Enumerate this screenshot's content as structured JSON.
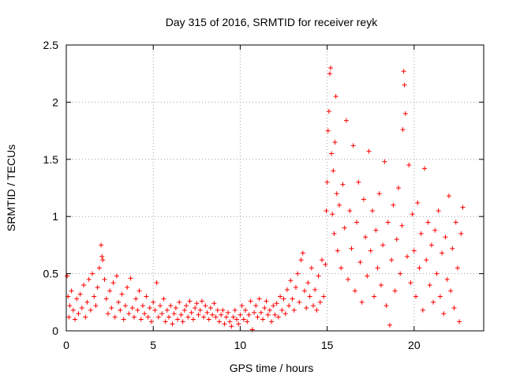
{
  "chart_data": {
    "type": "scatter",
    "title": "Day 315 of 2016, SRMTID for receiver reyk",
    "xlabel": "GPS time / hours",
    "ylabel": "SRMTID / TECUs",
    "xlim": [
      0,
      24
    ],
    "ylim": [
      0,
      2.5
    ],
    "xticks": [
      0,
      5,
      10,
      15,
      20
    ],
    "yticks": [
      0,
      0.5,
      1,
      1.5,
      2,
      2.5
    ],
    "xtick_labels": [
      "0",
      "5",
      "10",
      "15",
      "20"
    ],
    "ytick_labels": [
      "0",
      "0.5",
      "1",
      "1.5",
      "2",
      "2.5"
    ],
    "grid": true,
    "marker": "+",
    "series": [
      {
        "name": "SRMTID",
        "color": "#ff0000",
        "points": [
          [
            0.05,
            0.48
          ],
          [
            0.1,
            0.3
          ],
          [
            0.15,
            0.12
          ],
          [
            0.2,
            0.22
          ],
          [
            0.3,
            0.35
          ],
          [
            0.4,
            0.18
          ],
          [
            0.5,
            0.1
          ],
          [
            0.6,
            0.28
          ],
          [
            0.7,
            0.15
          ],
          [
            0.8,
            0.32
          ],
          [
            0.9,
            0.2
          ],
          [
            1.0,
            0.4
          ],
          [
            1.1,
            0.12
          ],
          [
            1.2,
            0.25
          ],
          [
            1.3,
            0.45
          ],
          [
            1.4,
            0.18
          ],
          [
            1.5,
            0.5
          ],
          [
            1.6,
            0.3
          ],
          [
            1.7,
            0.22
          ],
          [
            1.8,
            0.38
          ],
          [
            1.9,
            0.55
          ],
          [
            2.0,
            0.75
          ],
          [
            2.05,
            0.65
          ],
          [
            2.1,
            0.62
          ],
          [
            2.2,
            0.45
          ],
          [
            2.3,
            0.28
          ],
          [
            2.4,
            0.15
          ],
          [
            2.5,
            0.35
          ],
          [
            2.6,
            0.2
          ],
          [
            2.7,
            0.42
          ],
          [
            2.8,
            0.12
          ],
          [
            2.9,
            0.48
          ],
          [
            3.0,
            0.25
          ],
          [
            3.1,
            0.18
          ],
          [
            3.2,
            0.32
          ],
          [
            3.3,
            0.1
          ],
          [
            3.4,
            0.22
          ],
          [
            3.5,
            0.38
          ],
          [
            3.6,
            0.15
          ],
          [
            3.7,
            0.46
          ],
          [
            3.8,
            0.2
          ],
          [
            3.9,
            0.12
          ],
          [
            4.0,
            0.28
          ],
          [
            4.1,
            0.18
          ],
          [
            4.2,
            0.35
          ],
          [
            4.3,
            0.1
          ],
          [
            4.4,
            0.22
          ],
          [
            4.5,
            0.15
          ],
          [
            4.6,
            0.3
          ],
          [
            4.7,
            0.12
          ],
          [
            4.8,
            0.2
          ],
          [
            4.9,
            0.08
          ],
          [
            5.0,
            0.25
          ],
          [
            5.1,
            0.18
          ],
          [
            5.2,
            0.42
          ],
          [
            5.3,
            0.12
          ],
          [
            5.4,
            0.22
          ],
          [
            5.5,
            0.15
          ],
          [
            5.6,
            0.28
          ],
          [
            5.7,
            0.08
          ],
          [
            5.8,
            0.18
          ],
          [
            5.9,
            0.12
          ],
          [
            6.0,
            0.22
          ],
          [
            6.1,
            0.06
          ],
          [
            6.2,
            0.15
          ],
          [
            6.3,
            0.2
          ],
          [
            6.4,
            0.1
          ],
          [
            6.5,
            0.25
          ],
          [
            6.6,
            0.14
          ],
          [
            6.7,
            0.08
          ],
          [
            6.8,
            0.18
          ],
          [
            6.9,
            0.22
          ],
          [
            7.0,
            0.12
          ],
          [
            7.1,
            0.26
          ],
          [
            7.2,
            0.16
          ],
          [
            7.3,
            0.1
          ],
          [
            7.4,
            0.2
          ],
          [
            7.5,
            0.24
          ],
          [
            7.6,
            0.14
          ],
          [
            7.7,
            0.18
          ],
          [
            7.8,
            0.26
          ],
          [
            7.9,
            0.12
          ],
          [
            8.0,
            0.22
          ],
          [
            8.1,
            0.16
          ],
          [
            8.2,
            0.1
          ],
          [
            8.3,
            0.2
          ],
          [
            8.4,
            0.14
          ],
          [
            8.5,
            0.24
          ],
          [
            8.6,
            0.12
          ],
          [
            8.7,
            0.18
          ],
          [
            8.8,
            0.08
          ],
          [
            8.9,
            0.14
          ],
          [
            9.0,
            0.18
          ],
          [
            9.1,
            0.06
          ],
          [
            9.2,
            0.12
          ],
          [
            9.3,
            0.16
          ],
          [
            9.4,
            0.08
          ],
          [
            9.5,
            0.04
          ],
          [
            9.6,
            0.12
          ],
          [
            9.7,
            0.18
          ],
          [
            9.8,
            0.1
          ],
          [
            9.9,
            0.06
          ],
          [
            10.0,
            0.14
          ],
          [
            10.1,
            0.22
          ],
          [
            10.2,
            0.1
          ],
          [
            10.3,
            0.18
          ],
          [
            10.4,
            0.08
          ],
          [
            10.5,
            0.14
          ],
          [
            10.6,
            0.26
          ],
          [
            10.7,
            0.01
          ],
          [
            10.8,
            0.16
          ],
          [
            10.9,
            0.22
          ],
          [
            11.0,
            0.12
          ],
          [
            11.1,
            0.28
          ],
          [
            11.2,
            0.16
          ],
          [
            11.3,
            0.1
          ],
          [
            11.4,
            0.2
          ],
          [
            11.5,
            0.26
          ],
          [
            11.6,
            0.14
          ],
          [
            11.7,
            0.18
          ],
          [
            11.8,
            0.08
          ],
          [
            11.9,
            0.22
          ],
          [
            12.0,
            0.14
          ],
          [
            12.1,
            0.24
          ],
          [
            12.2,
            0.12
          ],
          [
            12.3,
            0.3
          ],
          [
            12.4,
            0.18
          ],
          [
            12.5,
            0.28
          ],
          [
            12.6,
            0.15
          ],
          [
            12.7,
            0.36
          ],
          [
            12.8,
            0.22
          ],
          [
            12.9,
            0.44
          ],
          [
            13.0,
            0.28
          ],
          [
            13.1,
            0.18
          ],
          [
            13.2,
            0.38
          ],
          [
            13.3,
            0.5
          ],
          [
            13.4,
            0.25
          ],
          [
            13.5,
            0.62
          ],
          [
            13.6,
            0.68
          ],
          [
            13.7,
            0.35
          ],
          [
            13.8,
            0.2
          ],
          [
            13.9,
            0.42
          ],
          [
            14.0,
            0.3
          ],
          [
            14.1,
            0.55
          ],
          [
            14.2,
            0.22
          ],
          [
            14.3,
            0.36
          ],
          [
            14.4,
            0.18
          ],
          [
            14.5,
            0.48
          ],
          [
            14.6,
            0.25
          ],
          [
            14.7,
            0.62
          ],
          [
            14.8,
            0.3
          ],
          [
            14.9,
            0.58
          ],
          [
            14.95,
            1.05
          ],
          [
            15.0,
            1.3
          ],
          [
            15.05,
            1.75
          ],
          [
            15.1,
            1.92
          ],
          [
            15.15,
            2.25
          ],
          [
            15.2,
            2.3
          ],
          [
            15.25,
            1.55
          ],
          [
            15.3,
            1.02
          ],
          [
            15.35,
            1.4
          ],
          [
            15.4,
            0.85
          ],
          [
            15.45,
            1.65
          ],
          [
            15.5,
            2.05
          ],
          [
            15.55,
            1.2
          ],
          [
            15.6,
            0.7
          ],
          [
            15.7,
            1.1
          ],
          [
            15.8,
            0.55
          ],
          [
            15.9,
            1.28
          ],
          [
            16.0,
            0.9
          ],
          [
            16.1,
            1.84
          ],
          [
            16.2,
            0.45
          ],
          [
            16.3,
            1.05
          ],
          [
            16.4,
            0.72
          ],
          [
            16.5,
            1.62
          ],
          [
            16.6,
            0.35
          ],
          [
            16.7,
            0.95
          ],
          [
            16.8,
            1.3
          ],
          [
            16.9,
            0.6
          ],
          [
            17.0,
            0.25
          ],
          [
            17.1,
            1.15
          ],
          [
            17.2,
            0.82
          ],
          [
            17.3,
            0.48
          ],
          [
            17.4,
            1.57
          ],
          [
            17.5,
            0.7
          ],
          [
            17.6,
            1.05
          ],
          [
            17.7,
            0.3
          ],
          [
            17.8,
            0.88
          ],
          [
            17.9,
            0.55
          ],
          [
            18.0,
            1.2
          ],
          [
            18.1,
            0.4
          ],
          [
            18.2,
            0.75
          ],
          [
            18.3,
            1.48
          ],
          [
            18.4,
            0.22
          ],
          [
            18.5,
            0.95
          ],
          [
            18.6,
            0.05
          ],
          [
            18.7,
            0.62
          ],
          [
            18.8,
            1.1
          ],
          [
            18.9,
            0.35
          ],
          [
            19.0,
            0.8
          ],
          [
            19.1,
            1.25
          ],
          [
            19.2,
            0.5
          ],
          [
            19.3,
            0.92
          ],
          [
            19.35,
            1.76
          ],
          [
            19.4,
            2.27
          ],
          [
            19.45,
            2.15
          ],
          [
            19.5,
            1.9
          ],
          [
            19.6,
            0.65
          ],
          [
            19.7,
            1.45
          ],
          [
            19.8,
            0.42
          ],
          [
            19.9,
            1.02
          ],
          [
            20.0,
            0.7
          ],
          [
            20.1,
            0.3
          ],
          [
            20.2,
            1.12
          ],
          [
            20.3,
            0.55
          ],
          [
            20.4,
            0.85
          ],
          [
            20.5,
            0.18
          ],
          [
            20.6,
            1.42
          ],
          [
            20.7,
            0.62
          ],
          [
            20.8,
            0.95
          ],
          [
            20.9,
            0.4
          ],
          [
            21.0,
            0.75
          ],
          [
            21.1,
            0.25
          ],
          [
            21.2,
            0.88
          ],
          [
            21.3,
            0.5
          ],
          [
            21.4,
            1.05
          ],
          [
            21.5,
            0.3
          ],
          [
            21.6,
            0.68
          ],
          [
            21.7,
            0.15
          ],
          [
            21.8,
            0.82
          ],
          [
            21.9,
            0.45
          ],
          [
            22.0,
            1.18
          ],
          [
            22.1,
            0.35
          ],
          [
            22.2,
            0.72
          ],
          [
            22.3,
            0.2
          ],
          [
            22.4,
            0.95
          ],
          [
            22.5,
            0.55
          ],
          [
            22.6,
            0.08
          ],
          [
            22.7,
            0.85
          ],
          [
            22.8,
            1.08
          ]
        ]
      }
    ]
  }
}
